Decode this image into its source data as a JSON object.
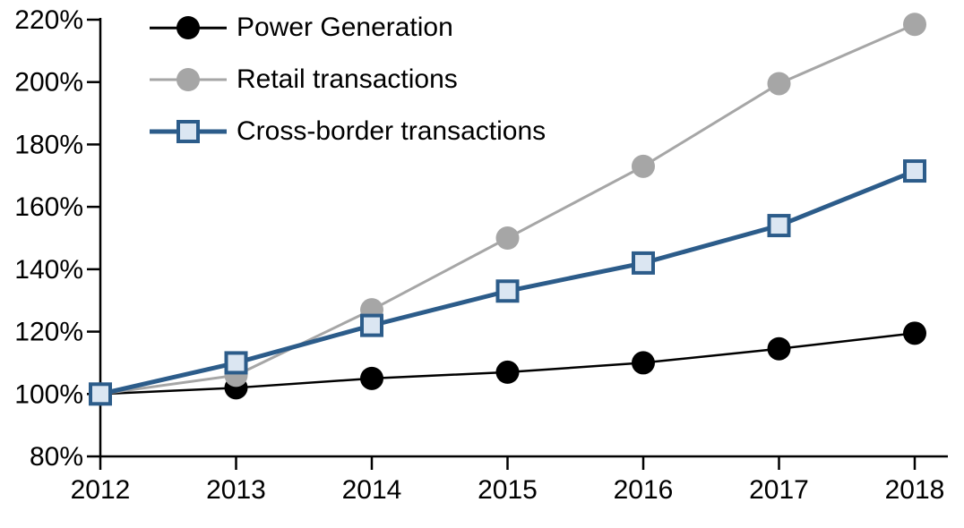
{
  "chart_data": {
    "type": "line",
    "x": [
      2012,
      2013,
      2014,
      2015,
      2016,
      2017,
      2018
    ],
    "series": [
      {
        "name": "Power Generation",
        "color": "#000000",
        "marker": "circle",
        "marker_fill": "#000000",
        "line_width": 2.5,
        "values": [
          100,
          102,
          105,
          107,
          110,
          114.5,
          119.5
        ]
      },
      {
        "name": "Retail transactions",
        "color": "#a6a6a6",
        "marker": "circle",
        "marker_fill": "#a6a6a6",
        "line_width": 3,
        "values": [
          100,
          106,
          127,
          150,
          173,
          199.5,
          218.5
        ]
      },
      {
        "name": "Cross-border transactions",
        "color": "#2c5c8a",
        "marker": "square",
        "marker_fill": "#dbe6f2",
        "line_width": 5,
        "values": [
          100,
          110,
          122,
          133,
          142,
          154,
          171.5
        ]
      }
    ],
    "ylim": [
      80,
      220
    ],
    "yticks": [
      80,
      100,
      120,
      140,
      160,
      180,
      200,
      220
    ],
    "ytick_suffix": "%",
    "grid": false,
    "legend_position": "top-left",
    "axis_color": "#000000"
  }
}
